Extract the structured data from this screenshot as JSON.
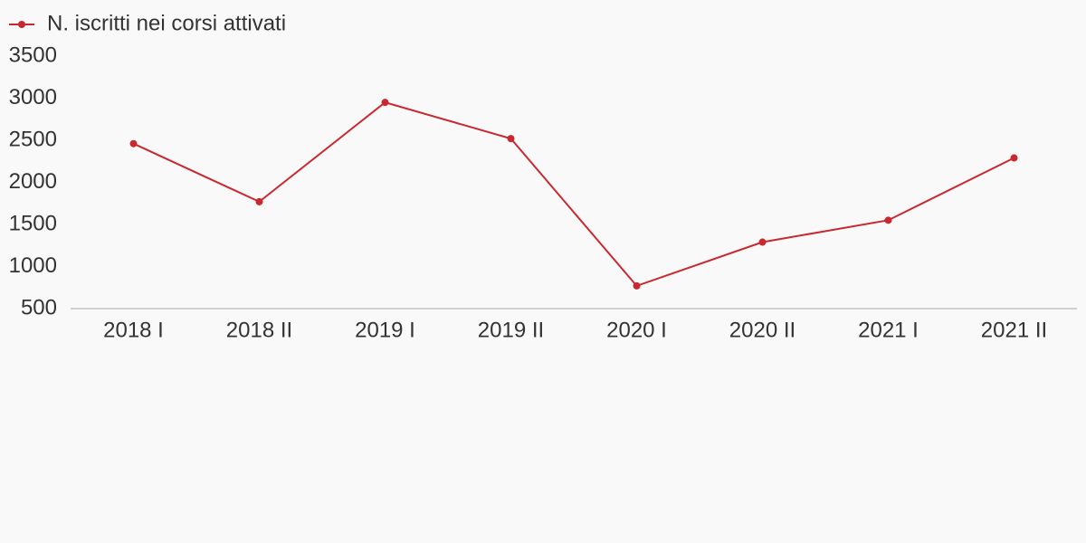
{
  "chart_data": {
    "type": "line",
    "categories": [
      "2018 I",
      "2018 II",
      "2019 I",
      "2019 II",
      "2020 I",
      "2020 II",
      "2021 I",
      "2021 II"
    ],
    "series": [
      {
        "name": "N. iscritti nei corsi attivati",
        "color": "#c8282f",
        "values": [
          2460,
          1770,
          2950,
          2520,
          770,
          1290,
          1550,
          2290
        ]
      }
    ],
    "ylim": [
      500,
      3500
    ],
    "yticks": [
      500,
      1000,
      1500,
      2000,
      2500,
      3000,
      3500
    ],
    "legend": "top-left"
  }
}
